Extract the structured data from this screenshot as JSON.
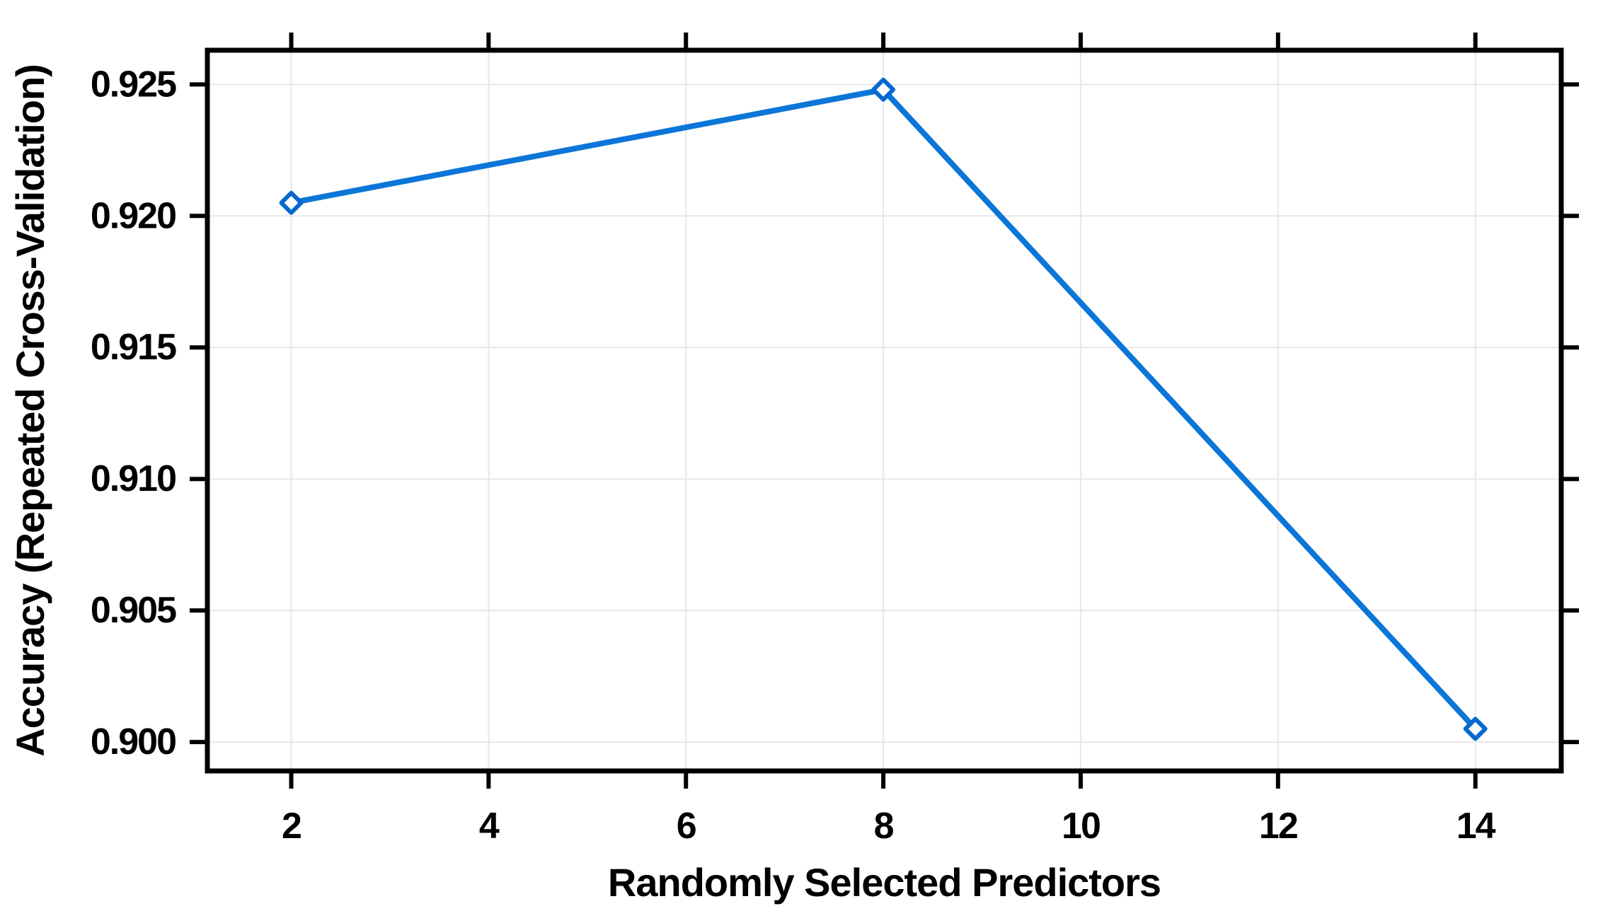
{
  "chart_data": {
    "type": "line",
    "title": "",
    "xlabel": "Randomly Selected Predictors",
    "ylabel": "Accuracy (Repeated Cross-Validation)",
    "x": [
      2,
      8,
      14
    ],
    "y": [
      0.9205,
      0.9248,
      0.9005
    ],
    "x_ticks": [
      2,
      4,
      6,
      8,
      10,
      12,
      14
    ],
    "x_tick_labels": [
      "2",
      "4",
      "6",
      "8",
      "10",
      "12",
      "14"
    ],
    "y_ticks": [
      0.9,
      0.905,
      0.91,
      0.915,
      0.92,
      0.925
    ],
    "y_tick_labels": [
      "0.900",
      "0.905",
      "0.910",
      "0.915",
      "0.920",
      "0.925"
    ],
    "xlim": [
      1.15,
      14.87
    ],
    "ylim": [
      0.8989,
      0.9263
    ],
    "grid": true,
    "legend": "none",
    "marker": "open-diamond",
    "colors": {
      "line": "#0b76d8",
      "marker_stroke": "#0769cf",
      "marker_fill": "#ffffff",
      "grid": "#e7e7e7",
      "axis": "#000000",
      "text": "#000000",
      "background": "#ffffff"
    }
  }
}
